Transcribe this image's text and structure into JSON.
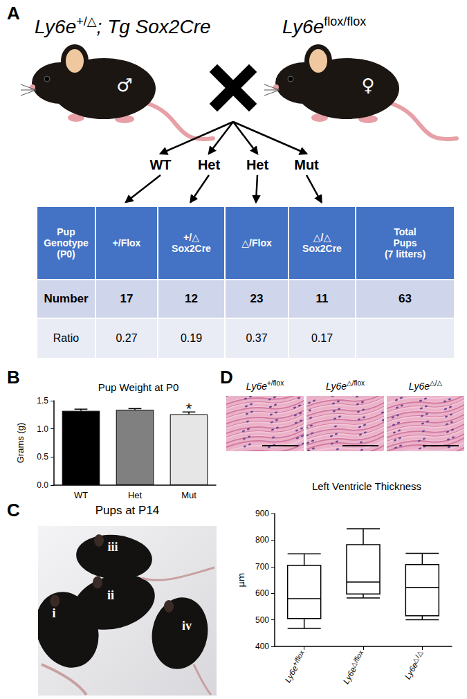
{
  "panels": {
    "A": {
      "label": "A",
      "parents": [
        {
          "gene": "Ly6e",
          "allele": "+/△",
          "suffix": "; Tg Sox2Cre",
          "sex": "♂"
        },
        {
          "gene": "Ly6e",
          "allele": "flox/flox",
          "sex": "♀"
        }
      ],
      "offspring": [
        "WT",
        "Het",
        "Het",
        "Mut"
      ],
      "table": {
        "header": [
          "Pup\nGenotype\n(P0)",
          "+/Flox",
          "+/△\nSox2Cre",
          "△/Flox",
          "△/△\nSox2Cre",
          "Total\nPups\n(7 litters)"
        ],
        "rows": [
          [
            "Number",
            17,
            12,
            23,
            11,
            63
          ],
          [
            "Ratio",
            0.27,
            0.19,
            0.37,
            0.17
          ]
        ]
      }
    },
    "B": {
      "label": "B"
    },
    "C": {
      "label": "C",
      "title": "Pups at P14",
      "pup_labels": [
        "i",
        "ii",
        "iii",
        "iv"
      ]
    },
    "D": {
      "label": "D",
      "images": [
        {
          "gene": "Ly6e",
          "allele": "+/flox"
        },
        {
          "gene": "Ly6e",
          "allele": "△/flox"
        },
        {
          "gene": "Ly6e",
          "allele": "△/△"
        }
      ]
    }
  },
  "chart_data": [
    {
      "type": "bar",
      "title": "Pup Weight at P0",
      "y_label": "Grams (g)",
      "categories": [
        "WT",
        "Het",
        "Mut"
      ],
      "values": [
        1.32,
        1.34,
        1.26
      ],
      "errors": [
        0.03,
        0.02,
        0.04
      ],
      "colors": [
        "#000000",
        "#808080",
        "#e6e6e6"
      ],
      "ylim": [
        0,
        1.5
      ],
      "yticks": [
        {
          "value": 0,
          "label": "0.0"
        },
        0.5,
        {
          "value": 1,
          "label": "1.0"
        },
        1.5
      ],
      "grid": false,
      "annotations": [
        {
          "category": "Mut",
          "text": "*"
        }
      ]
    },
    {
      "type": "boxplot",
      "title": "Left Ventricle Thickness",
      "y_label": "μm",
      "categories": [
        "Ly6e+/flox",
        "Ly6e△/flox",
        "Ly6e△/△"
      ],
      "values": [
        [
          468,
          505,
          580,
          705,
          748
        ],
        [
          582,
          597,
          642,
          783,
          843
        ],
        [
          500,
          515,
          622,
          708,
          750
        ]
      ],
      "color": "#000000",
      "ylim": [
        400,
        900
      ],
      "yticks": [
        400,
        500,
        600,
        700,
        800,
        900
      ],
      "grid": false
    }
  ]
}
